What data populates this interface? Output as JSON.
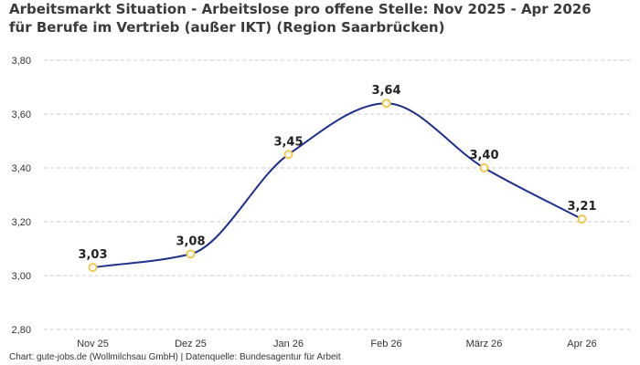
{
  "chart_data": {
    "type": "line",
    "title": "Arbeitsmarkt Situation - Arbeitslose pro offene Stelle: Nov 2025 - Apr 2026 für Berufe im Vertrieb (außer IKT) (Region Saarbrücken)",
    "categories": [
      "Nov 25",
      "Dez 25",
      "Jan 26",
      "Feb 26",
      "März 26",
      "Apr 26"
    ],
    "series": [
      {
        "values": [
          3.03,
          3.08,
          3.45,
          3.64,
          3.4,
          3.21
        ]
      }
    ],
    "data_labels": [
      "3,03",
      "3,08",
      "3,45",
      "3,64",
      "3,40",
      "3,21"
    ],
    "y_ticks": [
      "2,80",
      "3,00",
      "3,20",
      "3,40",
      "3,60",
      "3,80"
    ],
    "y_tick_values": [
      2.8,
      3.0,
      3.2,
      3.4,
      3.6,
      3.8
    ],
    "ylim": [
      2.8,
      3.8
    ],
    "xlabel": "",
    "ylabel": "",
    "grid": true,
    "legend": "none",
    "line_color": "#1f2f8c",
    "marker_color": "#f2c94c",
    "grid_color": "#cccccc"
  },
  "footer": "Chart: gute-jobs.de (Wollmilchsau GmbH) | Datenquelle: Bundesagentur für Arbeit"
}
